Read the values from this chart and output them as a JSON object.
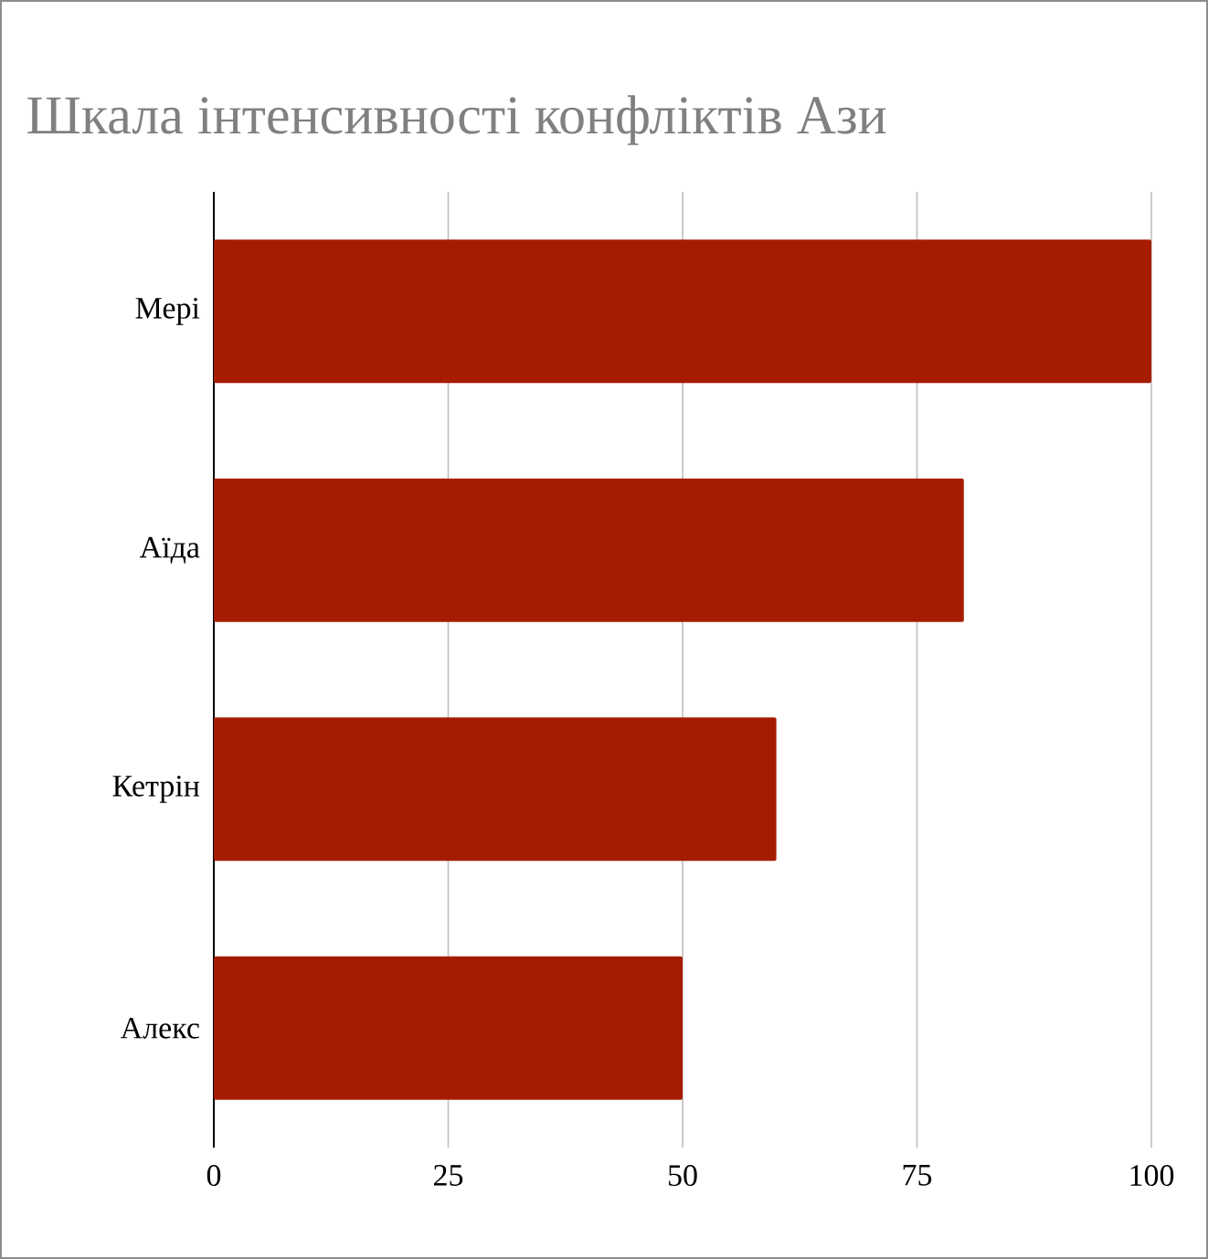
{
  "chart_data": {
    "type": "bar",
    "orientation": "horizontal",
    "title": "Шкала інтенсивності конфліктів Ази",
    "categories": [
      "Мері",
      "Аїда",
      "Кетрін",
      "Алекс"
    ],
    "values": [
      100,
      80,
      60,
      50
    ],
    "color": "#a61c00",
    "xlim": [
      0,
      100
    ],
    "xticks": [
      0,
      25,
      50,
      75,
      100
    ],
    "grid": "x"
  }
}
